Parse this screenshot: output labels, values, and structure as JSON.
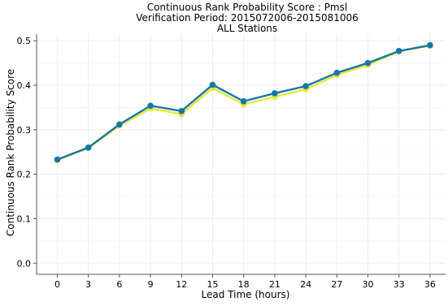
{
  "chart_data": {
    "type": "line",
    "title_lines": [
      "Continuous Rank Probability Score : Pmsl",
      "Verification Period: 2015072006-2015081006",
      "ALL Stations"
    ],
    "xlabel": "Lead Time (hours)",
    "ylabel": "Continuous Rank Probability Score",
    "x": [
      0,
      3,
      6,
      9,
      12,
      15,
      18,
      21,
      24,
      27,
      30,
      33,
      36
    ],
    "x_tick_labels": [
      "0",
      "3",
      "6",
      "9",
      "12",
      "15",
      "18",
      "21",
      "24",
      "27",
      "30",
      "33",
      "36"
    ],
    "y_tick_values": [
      0.0,
      0.1,
      0.2,
      0.3,
      0.4,
      0.5
    ],
    "y_tick_labels": [
      "0.0",
      "0.1",
      "0.2",
      "0.3",
      "0.4",
      "0.5"
    ],
    "xlim": [
      -2,
      37.5
    ],
    "ylim": [
      -0.025,
      0.515
    ],
    "grid": true,
    "legend": false,
    "series": [
      {
        "color": "#e8e83a",
        "values": [
          0.232,
          0.259,
          0.309,
          0.348,
          0.335,
          0.394,
          0.357,
          0.374,
          0.391,
          0.423,
          0.446,
          0.476,
          0.489
        ]
      },
      {
        "color": "#1676a8",
        "values": [
          0.233,
          0.26,
          0.312,
          0.354,
          0.342,
          0.401,
          0.364,
          0.382,
          0.398,
          0.428,
          0.45,
          0.477,
          0.49
        ]
      }
    ]
  }
}
